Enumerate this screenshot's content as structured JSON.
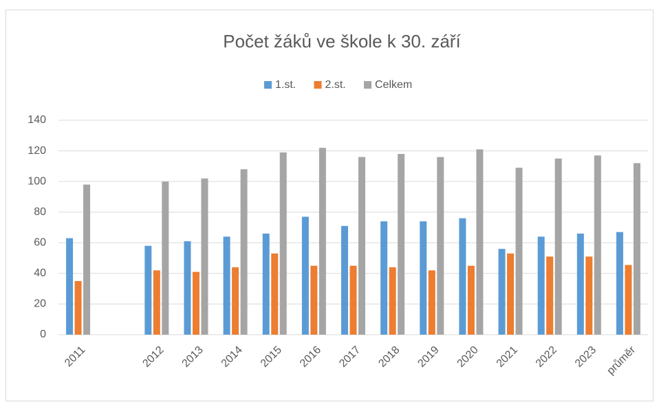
{
  "chart_data": {
    "type": "bar",
    "title": "Počet žáků ve škole k 30. září",
    "categories": [
      "2011",
      null,
      "2012",
      "2013",
      "2014",
      "2015",
      "2016",
      "2017",
      "2018",
      "2019",
      "2020",
      "2021",
      "2022",
      "2023",
      "průměr"
    ],
    "series": [
      {
        "name": "1.st.",
        "color": "#5b9bd5",
        "values": [
          63,
          null,
          58,
          61,
          64,
          66,
          77,
          71,
          74,
          74,
          76,
          56,
          64,
          66,
          67
        ]
      },
      {
        "name": "2.st.",
        "color": "#ed7d31",
        "values": [
          35,
          null,
          42,
          41,
          44,
          53,
          45,
          45,
          44,
          42,
          45,
          53,
          51,
          51,
          45.5
        ]
      },
      {
        "name": "Celkem",
        "color": "#a5a5a5",
        "values": [
          98,
          null,
          100,
          102,
          108,
          119,
          122,
          116,
          118,
          116,
          121,
          109,
          115,
          117,
          112
        ]
      }
    ],
    "ylim": [
      0,
      140
    ],
    "yticks": [
      0,
      20,
      40,
      60,
      80,
      100,
      120,
      140
    ],
    "grid": true,
    "legend": "top"
  }
}
